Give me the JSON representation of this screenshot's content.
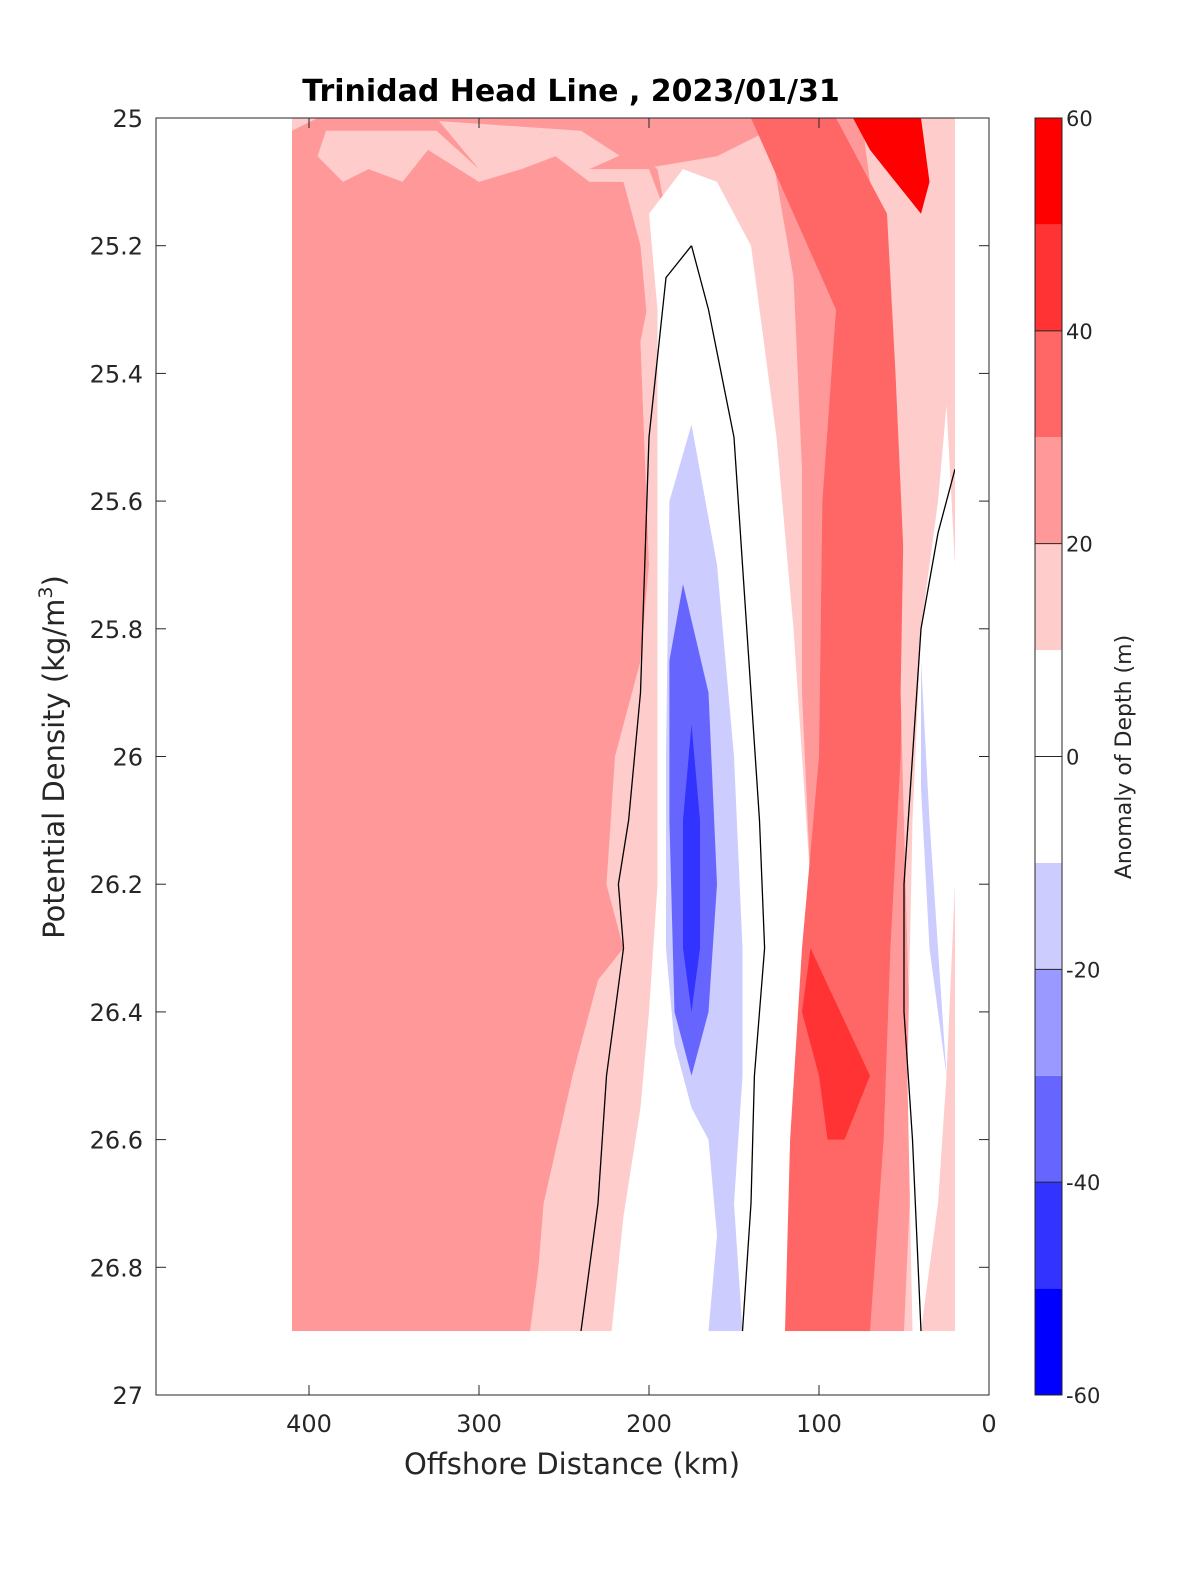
{
  "chart_data": {
    "type": "heatmap",
    "subtype": "filled-contour",
    "title": "Trinidad Head Line , 2023/01/31",
    "xlabel": "Offshore Distance (km)",
    "ylabel": "Potential Density (kg/m",
    "ylabel_sup": "3",
    "ylabel_tail": ")",
    "xlim": [
      490,
      0
    ],
    "x_reversed": true,
    "ylim": [
      25,
      27
    ],
    "y_reversed": true,
    "x_ticks": [
      400,
      300,
      200,
      100,
      0
    ],
    "y_ticks": [
      25,
      25.2,
      25.4,
      25.6,
      25.8,
      26,
      26.2,
      26.4,
      26.6,
      26.8,
      27
    ],
    "x_tick_labels": [
      "400",
      "300",
      "200",
      "100",
      "0"
    ],
    "y_tick_labels": [
      "25",
      "25.2",
      "25.4",
      "25.6",
      "25.8",
      "26",
      "26.2",
      "26.4",
      "26.6",
      "26.8",
      "27"
    ],
    "data_extent": {
      "x": [
        410,
        20
      ],
      "y": [
        25,
        26.9
      ]
    },
    "zero_contour_color": "#000000",
    "colorbar": {
      "label": "Anomaly of Depth (m)",
      "range": [
        -60,
        60
      ],
      "ticks": [
        60,
        40,
        20,
        0,
        -20,
        -40,
        -60
      ],
      "tick_labels": [
        "60",
        "40",
        "20",
        "0",
        "-20",
        "-40",
        "-60"
      ],
      "levels": [
        {
          "range": [
            -60,
            -50
          ],
          "color": "#0000ff"
        },
        {
          "range": [
            -50,
            -40
          ],
          "color": "#3333ff"
        },
        {
          "range": [
            -40,
            -30
          ],
          "color": "#6666ff"
        },
        {
          "range": [
            -30,
            -20
          ],
          "color": "#9999ff"
        },
        {
          "range": [
            -20,
            -10
          ],
          "color": "#ccccff"
        },
        {
          "range": [
            -10,
            10
          ],
          "color": "#ffffff"
        },
        {
          "range": [
            10,
            20
          ],
          "color": "#ffcccc"
        },
        {
          "range": [
            20,
            30
          ],
          "color": "#ff9999"
        },
        {
          "range": [
            30,
            40
          ],
          "color": "#ff6666"
        },
        {
          "range": [
            40,
            50
          ],
          "color": "#ff3333"
        },
        {
          "range": [
            50,
            60
          ],
          "color": "#ff0000"
        }
      ]
    },
    "regions": [
      {
        "level": 20,
        "points": [
          [
            410,
            25
          ],
          [
            20,
            25
          ],
          [
            20,
            26.9
          ],
          [
            410,
            26.9
          ]
        ]
      },
      {
        "level": 30,
        "points": [
          [
            395,
            25
          ],
          [
            325,
            25
          ],
          [
            300,
            25.08
          ],
          [
            260,
            25.02
          ],
          [
            235,
            25.08
          ],
          [
            210,
            25.05
          ],
          [
            195,
            25.08
          ],
          [
            190,
            25.15
          ],
          [
            205,
            25.35
          ],
          [
            200,
            25.7
          ],
          [
            205,
            25.85
          ],
          [
            220,
            26.05
          ],
          [
            225,
            26.2
          ],
          [
            215,
            26.3
          ],
          [
            230,
            26.4
          ],
          [
            245,
            26.55
          ],
          [
            260,
            26.7
          ],
          [
            270,
            26.9
          ],
          [
            410,
            26.9
          ],
          [
            410,
            25.02
          ]
        ]
      },
      {
        "level": 20,
        "points": [
          [
            395,
            25.06
          ],
          [
            380,
            25.1
          ],
          [
            365,
            25.08
          ],
          [
            345,
            25.1
          ],
          [
            330,
            25.05
          ],
          [
            300,
            25.1
          ],
          [
            275,
            25.08
          ],
          [
            255,
            25.06
          ],
          [
            235,
            25.1
          ],
          [
            215,
            25.1
          ],
          [
            205,
            25.2
          ],
          [
            195,
            25.5
          ],
          [
            190,
            25.9
          ],
          [
            190,
            26.1
          ],
          [
            195,
            26.2
          ],
          [
            195,
            26.4
          ],
          [
            205,
            26.55
          ],
          [
            215,
            26.72
          ],
          [
            222,
            26.9
          ],
          [
            268,
            26.9
          ],
          [
            262,
            26.7
          ],
          [
            245,
            26.5
          ],
          [
            230,
            26.35
          ],
          [
            215,
            26.3
          ],
          [
            225,
            26.2
          ],
          [
            220,
            26
          ],
          [
            205,
            25.85
          ],
          [
            200,
            25.7
          ],
          [
            205,
            25.35
          ],
          [
            190,
            25.15
          ],
          [
            200,
            25.08
          ],
          [
            235,
            25.08
          ],
          [
            260,
            25.02
          ],
          [
            300,
            25.08
          ],
          [
            325,
            25.02
          ],
          [
            390,
            25.02
          ]
        ]
      },
      {
        "level": 0,
        "points": [
          [
            180,
            25.08
          ],
          [
            160,
            25.1
          ],
          [
            140,
            25.2
          ],
          [
            125,
            25.5
          ],
          [
            115,
            25.8
          ],
          [
            105,
            26.2
          ],
          [
            105,
            26.5
          ],
          [
            100,
            26.7
          ],
          [
            97,
            26.9
          ],
          [
            222,
            26.9
          ],
          [
            215,
            26.72
          ],
          [
            205,
            26.55
          ],
          [
            200,
            26.4
          ],
          [
            195,
            26.2
          ],
          [
            195,
            25.6
          ],
          [
            195,
            25.3
          ],
          [
            200,
            25.15
          ]
        ]
      },
      {
        "level": -10,
        "points": [
          [
            175,
            25.48
          ],
          [
            160,
            25.7
          ],
          [
            150,
            26
          ],
          [
            145,
            26.3
          ],
          [
            145,
            26.5
          ],
          [
            150,
            26.7
          ],
          [
            145,
            26.9
          ],
          [
            165,
            26.9
          ],
          [
            160,
            26.75
          ],
          [
            165,
            26.6
          ],
          [
            175,
            26.55
          ],
          [
            185,
            26.45
          ],
          [
            190,
            26.3
          ],
          [
            190,
            26
          ],
          [
            188,
            25.6
          ]
        ]
      },
      {
        "level": -30,
        "points": [
          [
            180,
            25.73
          ],
          [
            165,
            25.9
          ],
          [
            160,
            26.2
          ],
          [
            165,
            26.4
          ],
          [
            175,
            26.5
          ],
          [
            185,
            26.4
          ],
          [
            188,
            26.1
          ],
          [
            188,
            25.85
          ]
        ]
      },
      {
        "level": -40,
        "points": [
          [
            175,
            25.95
          ],
          [
            170,
            26.1
          ],
          [
            170,
            26.3
          ],
          [
            175,
            26.4
          ],
          [
            180,
            26.3
          ],
          [
            180,
            26.1
          ]
        ]
      },
      {
        "level": 30,
        "points": [
          [
            440,
            25
          ],
          [
            350,
            25
          ],
          [
            240,
            25.02
          ],
          [
            205,
            25.08
          ],
          [
            160,
            25.06
          ],
          [
            130,
            25.02
          ],
          [
            115,
            25.25
          ],
          [
            110,
            25.55
          ],
          [
            110,
            25.9
          ],
          [
            105,
            26.2
          ],
          [
            105,
            26.5
          ],
          [
            100,
            26.7
          ],
          [
            110,
            26.9
          ],
          [
            50,
            26.9
          ],
          [
            45,
            26.6
          ],
          [
            48,
            26.3
          ],
          [
            52,
            25.9
          ],
          [
            55,
            25.55
          ],
          [
            60,
            25.3
          ],
          [
            70,
            25.1
          ],
          [
            75,
            25
          ]
        ]
      },
      {
        "level": 40,
        "points": [
          [
            140,
            25
          ],
          [
            90,
            25
          ],
          [
            60,
            25.15
          ],
          [
            55,
            25.4
          ],
          [
            50,
            25.7
          ],
          [
            52,
            26
          ],
          [
            58,
            26.3
          ],
          [
            62,
            26.6
          ],
          [
            70,
            26.9
          ],
          [
            120,
            26.9
          ],
          [
            117,
            26.6
          ],
          [
            110,
            26.3
          ],
          [
            100,
            26
          ],
          [
            98,
            25.6
          ],
          [
            90,
            25.3
          ]
        ]
      },
      {
        "level": 50,
        "points": [
          [
            70,
            26.5
          ],
          [
            85,
            26.6
          ],
          [
            95,
            26.6
          ],
          [
            100,
            26.5
          ],
          [
            110,
            26.4
          ],
          [
            105,
            26.3
          ]
        ]
      },
      {
        "level": 60,
        "points": [
          [
            80,
            25
          ],
          [
            40,
            25
          ],
          [
            35,
            25.1
          ],
          [
            40,
            25.15
          ],
          [
            55,
            25.1
          ],
          [
            70,
            25.05
          ]
        ]
      },
      {
        "level": 20,
        "points": [
          [
            38,
            25.4
          ],
          [
            25,
            25.5
          ],
          [
            22,
            25.8
          ],
          [
            20,
            26.2
          ],
          [
            25,
            26.55
          ],
          [
            30,
            26.75
          ],
          [
            45,
            26.9
          ],
          [
            48,
            26.9
          ],
          [
            45,
            26.6
          ],
          [
            48,
            26.3
          ],
          [
            52,
            25.9
          ],
          [
            50,
            25.6
          ]
        ]
      },
      {
        "level": 0,
        "points": [
          [
            25,
            25.45
          ],
          [
            20,
            25.7
          ],
          [
            20,
            26.2
          ],
          [
            25,
            26.5
          ],
          [
            30,
            26.7
          ],
          [
            40,
            26.9
          ],
          [
            45,
            26.9
          ],
          [
            48,
            26.5
          ],
          [
            45,
            26.1
          ],
          [
            40,
            25.8
          ],
          [
            30,
            25.6
          ]
        ]
      },
      {
        "level": -10,
        "points": [
          [
            40,
            25.85
          ],
          [
            35,
            26.1
          ],
          [
            30,
            26.3
          ],
          [
            25,
            26.5
          ],
          [
            35,
            26.3
          ],
          [
            40,
            26.05
          ]
        ]
      }
    ],
    "contours": [
      {
        "level": 0,
        "points": [
          [
            175,
            25.2
          ],
          [
            190,
            25.25
          ],
          [
            200,
            25.5
          ],
          [
            205,
            25.9
          ],
          [
            212,
            26.1
          ],
          [
            218,
            26.2
          ],
          [
            215,
            26.3
          ],
          [
            225,
            26.5
          ],
          [
            230,
            26.7
          ],
          [
            240,
            26.9
          ]
        ]
      },
      {
        "level": 0,
        "points": [
          [
            175,
            25.2
          ],
          [
            165,
            25.3
          ],
          [
            150,
            25.5
          ],
          [
            145,
            25.7
          ],
          [
            140,
            25.9
          ],
          [
            135,
            26.1
          ],
          [
            132,
            26.3
          ],
          [
            138,
            26.5
          ],
          [
            140,
            26.7
          ],
          [
            145,
            26.9
          ]
        ]
      },
      {
        "level": 0,
        "points": [
          [
            20,
            25.55
          ],
          [
            30,
            25.65
          ],
          [
            40,
            25.8
          ],
          [
            45,
            26
          ],
          [
            50,
            26.2
          ],
          [
            50,
            26.4
          ],
          [
            45,
            26.6
          ],
          [
            40,
            26.9
          ]
        ]
      }
    ]
  }
}
